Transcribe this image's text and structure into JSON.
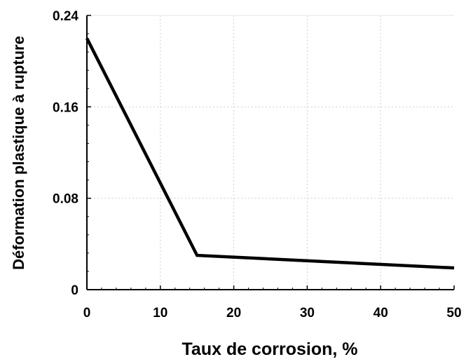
{
  "chart_data": {
    "type": "line",
    "title": "",
    "xlabel": "Taux de corrosion, %",
    "ylabel": "Déformation plastique à rupture",
    "xlim": [
      0,
      50
    ],
    "ylim": [
      0,
      0.24
    ],
    "x_ticks": [
      0,
      10,
      20,
      30,
      40,
      50
    ],
    "x_tick_labels": [
      "0",
      "10",
      "20",
      "30",
      "40",
      "50"
    ],
    "y_ticks": [
      0,
      0.08,
      0.16,
      0.24
    ],
    "y_tick_labels": [
      "0",
      "0.08",
      "0.16",
      "0.24"
    ],
    "grid": true,
    "legend": "none",
    "series": [
      {
        "x": [
          0,
          15,
          50
        ],
        "y": [
          0.22,
          0.03,
          0.019
        ],
        "color": "#000000"
      }
    ]
  }
}
